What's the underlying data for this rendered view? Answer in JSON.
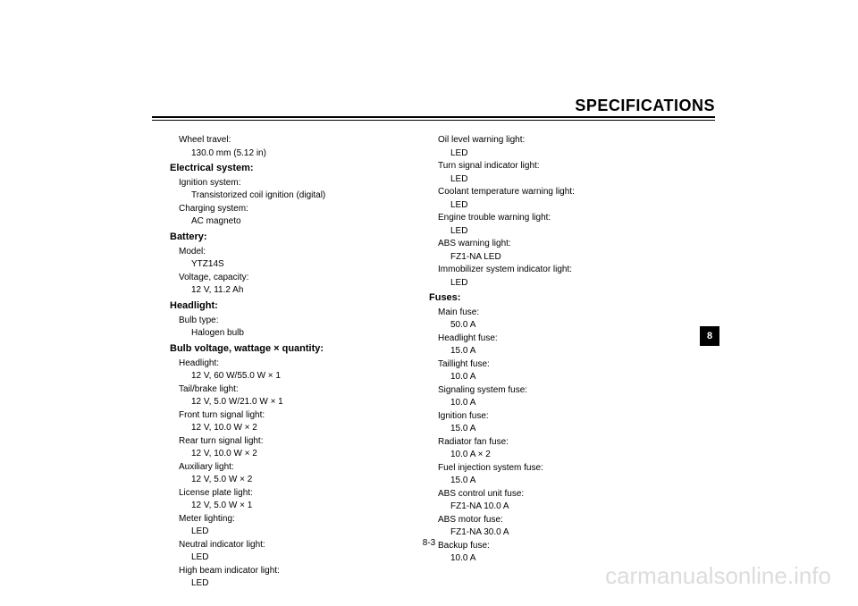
{
  "header": {
    "title": "SPECIFICATIONS"
  },
  "tab": {
    "number": "8"
  },
  "footer": {
    "page": "8-3"
  },
  "watermark": "carmanualsonline.info",
  "col1": {
    "wheelTravel_l": "Wheel travel:",
    "wheelTravel_v": "130.0 mm (5.12 in)",
    "electrical_h": "Electrical system:",
    "ignition_l": "Ignition system:",
    "ignition_v": "Transistorized coil ignition (digital)",
    "charging_l": "Charging system:",
    "charging_v": "AC magneto",
    "battery_h": "Battery:",
    "model_l": "Model:",
    "model_v": "YTZ14S",
    "voltcap_l": "Voltage, capacity:",
    "voltcap_v": "12 V, 11.2 Ah",
    "headlight_h": "Headlight:",
    "bulbtype_l": "Bulb type:",
    "bulbtype_v": "Halogen bulb",
    "bvq_h": "Bulb voltage, wattage × quantity:",
    "headlight_l": "Headlight:",
    "headlight_v": "12 V, 60 W/55.0 W × 1",
    "tailbrake_l": "Tail/brake light:",
    "tailbrake_v": "12 V, 5.0 W/21.0 W × 1",
    "frontturn_l": "Front turn signal light:",
    "frontturn_v": "12 V, 10.0 W × 2",
    "rearturn_l": "Rear turn signal light:",
    "rearturn_v": "12 V, 10.0 W × 2",
    "aux_l": "Auxiliary light:",
    "aux_v": "12 V, 5.0 W × 2",
    "license_l": "License plate light:",
    "license_v": "12 V, 5.0 W × 1",
    "meter_l": "Meter lighting:",
    "meter_v": "LED",
    "neutral_l": "Neutral indicator light:",
    "neutral_v": "LED",
    "highbeam_l": "High beam indicator light:",
    "highbeam_v": "LED"
  },
  "col2": {
    "oil_l": "Oil level warning light:",
    "oil_v": "LED",
    "turnsig_l": "Turn signal indicator light:",
    "turnsig_v": "LED",
    "coolant_l": "Coolant temperature warning light:",
    "coolant_v": "LED",
    "engine_l": "Engine trouble warning light:",
    "engine_v": "LED",
    "abs_l": "ABS warning light:",
    "abs_v": "FZ1-NA LED",
    "immo_l": "Immobilizer system indicator light:",
    "immo_v": "LED",
    "fuses_h": "Fuses:",
    "main_l": "Main fuse:",
    "main_v": "50.0 A",
    "head_l": "Headlight fuse:",
    "head_v": "15.0 A",
    "tail_l": "Taillight fuse:",
    "tail_v": "10.0 A",
    "signal_l": "Signaling system fuse:",
    "signal_v": "10.0 A",
    "ign_l": "Ignition fuse:",
    "ign_v": "15.0 A",
    "radfan_l": "Radiator fan fuse:",
    "radfan_v": "10.0 A × 2",
    "fuelinj_l": "Fuel injection system fuse:",
    "fuelinj_v": "15.0 A",
    "abscu_l": "ABS control unit fuse:",
    "abscu_v": "FZ1-NA 10.0 A",
    "absmotor_l": "ABS motor fuse:",
    "absmotor_v": "FZ1-NA 30.0 A",
    "backup_l": "Backup fuse:",
    "backup_v": "10.0 A"
  }
}
